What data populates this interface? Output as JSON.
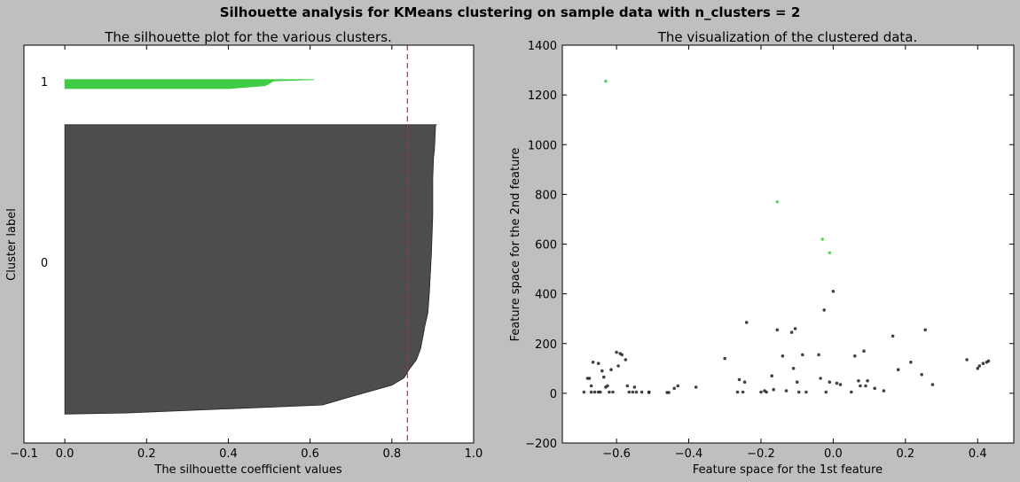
{
  "suptitle": "Silhouette analysis for KMeans clustering on sample data with n_clusters = 2",
  "colors": {
    "figure_bg": "#bfbfbf",
    "axes_bg": "#ffffff",
    "cluster_0": "#4d4d4d",
    "cluster_1": "#3fcc44",
    "avg_line": "#e8191e"
  },
  "chart_data": [
    {
      "type": "area",
      "title": "The silhouette plot for the various clusters.",
      "xlabel": "The silhouette coefficient values",
      "ylabel": "Cluster label",
      "xlim": [
        -0.1,
        1.0
      ],
      "ylim": [
        0,
        110
      ],
      "xticks": [
        -0.1,
        0.0,
        0.2,
        0.4,
        0.6,
        0.8,
        1.0
      ],
      "xtick_labels": [
        "−0.1",
        "0.0",
        "0.2",
        "0.4",
        "0.6",
        "0.8",
        "1.0"
      ],
      "cluster_labels": [
        {
          "text": "0",
          "y": 50
        },
        {
          "text": "1",
          "y": 100
        }
      ],
      "average_silhouette": 0.838,
      "series": [
        {
          "cluster": 0,
          "y_lower": 8,
          "y_upper": 88,
          "profile": [
            [
              0,
              0.0
            ],
            [
              0.3,
              0.15
            ],
            [
              2.5,
              0.63
            ],
            [
              4.5,
              0.69
            ],
            [
              8,
              0.8
            ],
            [
              10,
              0.83
            ],
            [
              12,
              0.84
            ],
            [
              15,
              0.86
            ],
            [
              18,
              0.87
            ],
            [
              22,
              0.877
            ],
            [
              24,
              0.88
            ],
            [
              28,
              0.888
            ],
            [
              34,
              0.892
            ],
            [
              45,
              0.897
            ],
            [
              55,
              0.9
            ],
            [
              65,
              0.9
            ],
            [
              71,
              0.902
            ],
            [
              73,
              0.904
            ],
            [
              75,
              0.905
            ],
            [
              80,
              0.907
            ],
            [
              80,
              0.91
            ]
          ]
        },
        {
          "cluster": 1,
          "y_lower": 98,
          "y_upper": 100.5,
          "profile": [
            [
              0,
              0.4
            ],
            [
              0.8,
              0.49
            ],
            [
              1.4,
              0.5
            ],
            [
              2.1,
              0.51
            ],
            [
              2.5,
              0.61
            ]
          ]
        }
      ]
    },
    {
      "type": "scatter",
      "title": "The visualization of the clustered data.",
      "xlabel": "Feature space for the 1st feature",
      "ylabel": "Feature space for the 2nd feature",
      "xlim": [
        -0.75,
        0.5
      ],
      "ylim": [
        -200,
        1400
      ],
      "xticks": [
        -0.6,
        -0.4,
        -0.2,
        0.0,
        0.2,
        0.4
      ],
      "xtick_labels": [
        "−0.6",
        "−0.4",
        "−0.2",
        "0.0",
        "0.2",
        "0.4"
      ],
      "yticks": [
        -200,
        0,
        200,
        400,
        600,
        800,
        1000,
        1200,
        1400
      ],
      "ytick_labels": [
        "−200",
        "0",
        "200",
        "400",
        "600",
        "800",
        "1000",
        "1200",
        "1400"
      ],
      "series": [
        {
          "cluster": 1,
          "points": [
            [
              -0.63,
              1255
            ],
            [
              -0.155,
              770
            ],
            [
              -0.03,
              620
            ],
            [
              -0.01,
              565
            ]
          ]
        },
        {
          "cluster": 0,
          "points": [
            [
              -0.69,
              5
            ],
            [
              -0.68,
              60
            ],
            [
              -0.675,
              60
            ],
            [
              -0.67,
              30
            ],
            [
              -0.67,
              5
            ],
            [
              -0.665,
              125
            ],
            [
              -0.66,
              5
            ],
            [
              -0.65,
              120
            ],
            [
              -0.65,
              5
            ],
            [
              -0.645,
              5
            ],
            [
              -0.64,
              90
            ],
            [
              -0.635,
              65
            ],
            [
              -0.63,
              25
            ],
            [
              -0.625,
              30
            ],
            [
              -0.62,
              5
            ],
            [
              -0.615,
              95
            ],
            [
              -0.61,
              5
            ],
            [
              -0.6,
              165
            ],
            [
              -0.595,
              110
            ],
            [
              -0.59,
              160
            ],
            [
              -0.585,
              155
            ],
            [
              -0.575,
              135
            ],
            [
              -0.57,
              30
            ],
            [
              -0.565,
              5
            ],
            [
              -0.555,
              5
            ],
            [
              -0.55,
              25
            ],
            [
              -0.545,
              5
            ],
            [
              -0.53,
              5
            ],
            [
              -0.51,
              5
            ],
            [
              -0.51,
              3
            ],
            [
              -0.46,
              3
            ],
            [
              -0.455,
              3
            ],
            [
              -0.44,
              20
            ],
            [
              -0.43,
              30
            ],
            [
              -0.38,
              25
            ],
            [
              -0.3,
              140
            ],
            [
              -0.265,
              5
            ],
            [
              -0.26,
              55
            ],
            [
              -0.25,
              5
            ],
            [
              -0.245,
              45
            ],
            [
              -0.24,
              285
            ],
            [
              -0.2,
              5
            ],
            [
              -0.19,
              10
            ],
            [
              -0.185,
              5
            ],
            [
              -0.17,
              70
            ],
            [
              -0.165,
              15
            ],
            [
              -0.155,
              255
            ],
            [
              -0.14,
              150
            ],
            [
              -0.13,
              10
            ],
            [
              -0.115,
              245
            ],
            [
              -0.11,
              100
            ],
            [
              -0.105,
              260
            ],
            [
              -0.1,
              45
            ],
            [
              -0.095,
              5
            ],
            [
              -0.085,
              155
            ],
            [
              -0.075,
              5
            ],
            [
              -0.04,
              155
            ],
            [
              -0.035,
              60
            ],
            [
              -0.025,
              335
            ],
            [
              -0.02,
              5
            ],
            [
              -0.01,
              45
            ],
            [
              0.0,
              410
            ],
            [
              0.01,
              40
            ],
            [
              0.02,
              35
            ],
            [
              0.05,
              5
            ],
            [
              0.06,
              150
            ],
            [
              0.07,
              50
            ],
            [
              0.075,
              30
            ],
            [
              0.085,
              170
            ],
            [
              0.09,
              30
            ],
            [
              0.095,
              50
            ],
            [
              0.115,
              20
            ],
            [
              0.14,
              10
            ],
            [
              0.165,
              230
            ],
            [
              0.18,
              95
            ],
            [
              0.215,
              125
            ],
            [
              0.245,
              75
            ],
            [
              0.255,
              255
            ],
            [
              0.275,
              35
            ],
            [
              0.37,
              135
            ],
            [
              0.4,
              100
            ],
            [
              0.405,
              110
            ],
            [
              0.415,
              120
            ],
            [
              0.425,
              125
            ],
            [
              0.43,
              130
            ]
          ]
        }
      ]
    }
  ]
}
